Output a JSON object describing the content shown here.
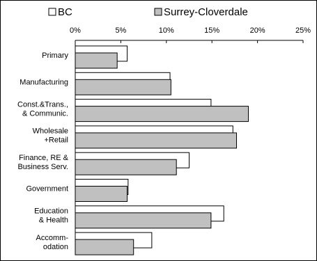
{
  "chart_data": {
    "type": "bar",
    "orientation": "horizontal",
    "categories": [
      "Primary",
      "Manufacturing",
      "Const.&Trans.,\n& Communic.",
      "Wholesale\n+Retail",
      "Finance, RE &\nBusiness Serv.",
      "Government",
      "Education\n& Health",
      "Accomm-\nodation"
    ],
    "series": [
      {
        "name": "BC",
        "color": "#ffffff",
        "values": [
          5.7,
          10.4,
          14.9,
          17.3,
          12.5,
          5.8,
          16.3,
          8.4
        ]
      },
      {
        "name": "Surrey-Cloverdale",
        "color": "#c0c0c0",
        "values": [
          4.6,
          10.5,
          19.0,
          17.7,
          11.1,
          5.7,
          14.9,
          6.4
        ]
      }
    ],
    "xlim": [
      0,
      25
    ],
    "xticks": [
      0,
      5,
      10,
      15,
      20,
      25
    ],
    "xtick_labels": [
      "0%",
      "5%",
      "10%",
      "15%",
      "20%",
      "25%"
    ],
    "legend_position": "top",
    "grid": false
  }
}
